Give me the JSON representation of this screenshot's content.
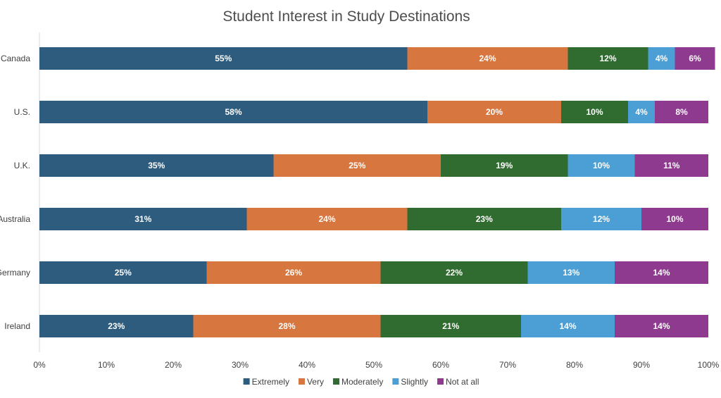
{
  "chart_data": {
    "type": "bar",
    "orientation": "horizontal",
    "stacked": true,
    "title": "Student Interest in Study Destinations",
    "categories": [
      "Canada",
      "U.S.",
      "U.K.",
      "Australia",
      "Germany",
      "Ireland"
    ],
    "series": [
      {
        "name": "Extremely",
        "color": "#2e5c7f",
        "values": [
          55,
          58,
          35,
          31,
          25,
          23
        ]
      },
      {
        "name": "Very",
        "color": "#d8763f",
        "values": [
          24,
          20,
          25,
          24,
          26,
          28
        ]
      },
      {
        "name": "Moderately",
        "color": "#306b30",
        "values": [
          12,
          10,
          19,
          23,
          22,
          21
        ]
      },
      {
        "name": "Slightly",
        "color": "#4b9fd5",
        "values": [
          4,
          4,
          10,
          12,
          13,
          14
        ]
      },
      {
        "name": "Not at all",
        "color": "#8e3a8f",
        "values": [
          6,
          8,
          11,
          10,
          14,
          14
        ]
      }
    ],
    "data_label_suffix": "%",
    "x_ticks": [
      "0%",
      "10%",
      "20%",
      "30%",
      "40%",
      "50%",
      "60%",
      "70%",
      "80%",
      "90%",
      "100%"
    ],
    "xlim": [
      0,
      100
    ],
    "grid": false,
    "legend_position": "bottom"
  }
}
